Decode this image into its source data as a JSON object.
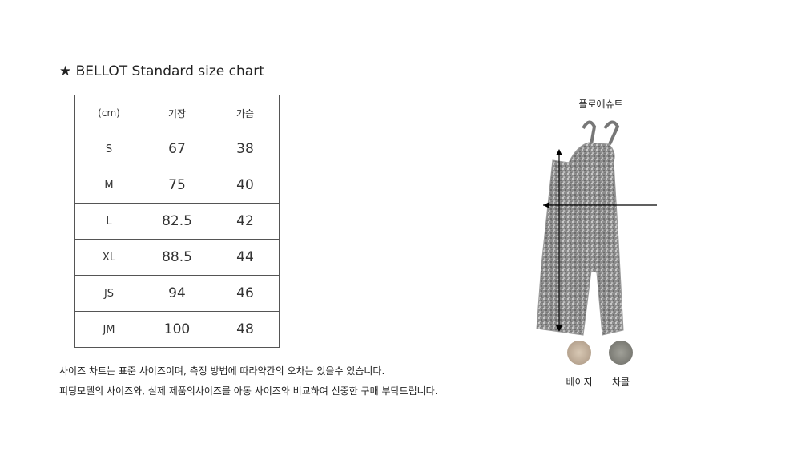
{
  "title": "★ BELLOT Standard size chart",
  "table": {
    "headers": [
      "(cm)",
      "기장",
      "가슴"
    ],
    "rows": [
      [
        "S",
        "67",
        "38"
      ],
      [
        "M",
        "75",
        "40"
      ],
      [
        "L",
        "82.5",
        "42"
      ],
      [
        "XL",
        "88.5",
        "44"
      ],
      [
        "JS",
        "94",
        "46"
      ],
      [
        "JM",
        "100",
        "48"
      ]
    ]
  },
  "notes": [
    "사이즈 차트는 표준 사이즈이며, 측정 방법에 따라약간의 오차는 있을수 있습니다.",
    "피팅모델의 사이즈와, 실제 제품의사이즈를 아동 사이즈와 비교하여 신중한 구매 부탁드립니다."
  ],
  "product": {
    "name": "플로에슈트",
    "colors": [
      {
        "label": "베이지",
        "hex": "#c9b8a4"
      },
      {
        "label": "차콜",
        "hex": "#8a8a84"
      }
    ]
  }
}
